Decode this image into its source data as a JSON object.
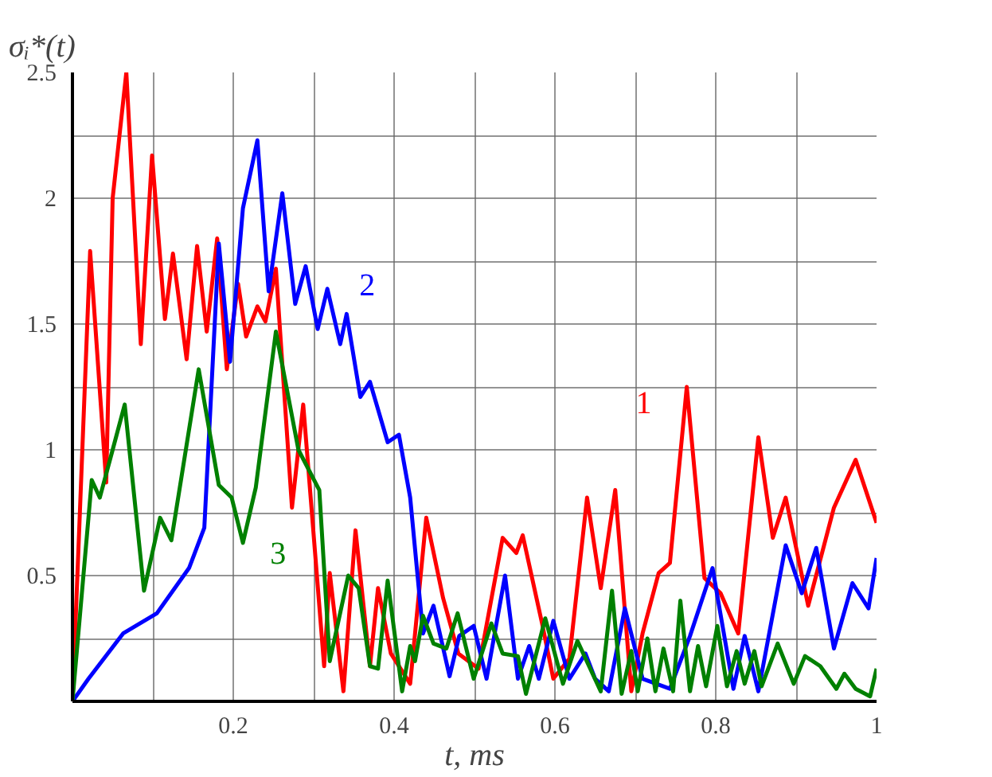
{
  "chart_data": {
    "type": "line",
    "xlabel": "t, ms",
    "ylabel": "σᵢ*(t)",
    "xlim": [
      0,
      1
    ],
    "ylim": [
      0,
      2.5
    ],
    "xticks": [
      {
        "value": 0,
        "label": null
      },
      {
        "value": 0.1,
        "label": null
      },
      0.2,
      {
        "value": 0.3,
        "label": null
      },
      0.4,
      {
        "value": 0.5,
        "label": null
      },
      0.6,
      {
        "value": 0.7,
        "label": null
      },
      0.8,
      {
        "value": 0.9,
        "label": null
      },
      1
    ],
    "yticks": [
      {
        "value": 0,
        "label": null
      },
      {
        "value": 0.25,
        "label": null
      },
      0.5,
      {
        "value": 0.75,
        "label": null
      },
      1,
      {
        "value": 1.25,
        "label": null
      },
      1.5,
      {
        "value": 1.75,
        "label": null
      },
      2,
      {
        "value": 2.25,
        "label": null
      },
      2.5
    ],
    "grid": true,
    "line_style": "solid",
    "annotations": [
      {
        "text": "1",
        "x": 0.75,
        "y": 1.1
      },
      {
        "text": "2",
        "x": 0.333,
        "y": 1.55
      },
      {
        "text": "3",
        "x": 0.22,
        "y": 0.68
      }
    ],
    "series": [
      {
        "color": "#ff0000",
        "x": [
          0,
          0.022,
          0.042,
          0.05,
          0.067,
          0.085,
          0.099,
          0.115,
          0.125,
          0.142,
          0.155,
          0.167,
          0.18,
          0.192,
          0.206,
          0.216,
          0.23,
          0.24,
          0.253,
          0.273,
          0.287,
          0.313,
          0.32,
          0.337,
          0.352,
          0.37,
          0.38,
          0.396,
          0.42,
          0.44,
          0.461,
          0.48,
          0.505,
          0.535,
          0.552,
          0.56,
          0.584,
          0.598,
          0.618,
          0.64,
          0.657,
          0.675,
          0.695,
          0.709,
          0.729,
          0.743,
          0.764,
          0.786,
          0.806,
          0.828,
          0.853,
          0.871,
          0.887,
          0.915,
          0.947,
          0.974,
          1.0
        ],
        "values": [
          0,
          1.79,
          0.87,
          2.0,
          2.5,
          1.42,
          2.17,
          1.52,
          1.78,
          1.36,
          1.81,
          1.47,
          1.84,
          1.32,
          1.66,
          1.45,
          1.57,
          1.51,
          1.72,
          0.77,
          1.18,
          0.14,
          0.51,
          0.04,
          0.68,
          0.14,
          0.45,
          0.19,
          0.07,
          0.73,
          0.41,
          0.19,
          0.13,
          0.65,
          0.59,
          0.66,
          0.31,
          0.09,
          0.17,
          0.81,
          0.45,
          0.84,
          0.04,
          0.27,
          0.51,
          0.55,
          1.25,
          0.49,
          0.43,
          0.27,
          1.05,
          0.65,
          0.81,
          0.38,
          0.77,
          0.96,
          0.71
        ]
      },
      {
        "color": "#0000ff",
        "x": [
          0,
          0.02,
          0.063,
          0.105,
          0.145,
          0.164,
          0.182,
          0.196,
          0.212,
          0.23,
          0.244,
          0.261,
          0.277,
          0.29,
          0.305,
          0.317,
          0.333,
          0.341,
          0.358,
          0.37,
          0.392,
          0.406,
          0.42,
          0.436,
          0.449,
          0.469,
          0.481,
          0.499,
          0.515,
          0.538,
          0.554,
          0.568,
          0.58,
          0.598,
          0.618,
          0.638,
          0.65,
          0.667,
          0.687,
          0.709,
          0.743,
          0.768,
          0.796,
          0.822,
          0.836,
          0.853,
          0.887,
          0.907,
          0.925,
          0.947,
          0.97,
          0.99,
          1.0
        ],
        "values": [
          0,
          0.09,
          0.27,
          0.35,
          0.53,
          0.69,
          1.82,
          1.35,
          1.96,
          2.23,
          1.63,
          2.02,
          1.58,
          1.73,
          1.48,
          1.64,
          1.42,
          1.54,
          1.21,
          1.27,
          1.03,
          1.06,
          0.81,
          0.27,
          0.38,
          0.1,
          0.26,
          0.3,
          0.09,
          0.5,
          0.09,
          0.22,
          0.09,
          0.32,
          0.09,
          0.19,
          0.09,
          0.04,
          0.37,
          0.09,
          0.05,
          0.26,
          0.53,
          0.05,
          0.26,
          0.04,
          0.62,
          0.43,
          0.61,
          0.21,
          0.47,
          0.37,
          0.57
        ]
      },
      {
        "color": "#008000",
        "x": [
          0,
          0.024,
          0.034,
          0.05,
          0.065,
          0.089,
          0.109,
          0.123,
          0.157,
          0.182,
          0.198,
          0.212,
          0.228,
          0.253,
          0.281,
          0.307,
          0.32,
          0.343,
          0.356,
          0.37,
          0.38,
          0.392,
          0.41,
          0.42,
          0.426,
          0.436,
          0.449,
          0.465,
          0.479,
          0.499,
          0.521,
          0.535,
          0.554,
          0.564,
          0.588,
          0.61,
          0.628,
          0.657,
          0.671,
          0.683,
          0.695,
          0.703,
          0.715,
          0.725,
          0.735,
          0.747,
          0.756,
          0.768,
          0.778,
          0.788,
          0.802,
          0.814,
          0.826,
          0.836,
          0.848,
          0.857,
          0.877,
          0.897,
          0.911,
          0.93,
          0.95,
          0.96,
          0.974,
          0.992,
          1.0
        ],
        "values": [
          0,
          0.88,
          0.81,
          1.0,
          1.18,
          0.44,
          0.73,
          0.64,
          1.32,
          0.86,
          0.81,
          0.63,
          0.85,
          1.47,
          1.0,
          0.84,
          0.16,
          0.5,
          0.45,
          0.14,
          0.13,
          0.48,
          0.04,
          0.22,
          0.16,
          0.34,
          0.23,
          0.21,
          0.35,
          0.09,
          0.31,
          0.19,
          0.18,
          0.03,
          0.33,
          0.07,
          0.24,
          0.04,
          0.44,
          0.03,
          0.2,
          0.04,
          0.25,
          0.04,
          0.21,
          0.04,
          0.4,
          0.04,
          0.22,
          0.06,
          0.3,
          0.06,
          0.2,
          0.07,
          0.2,
          0.06,
          0.23,
          0.07,
          0.18,
          0.14,
          0.05,
          0.11,
          0.05,
          0.02,
          0.13
        ]
      }
    ]
  }
}
